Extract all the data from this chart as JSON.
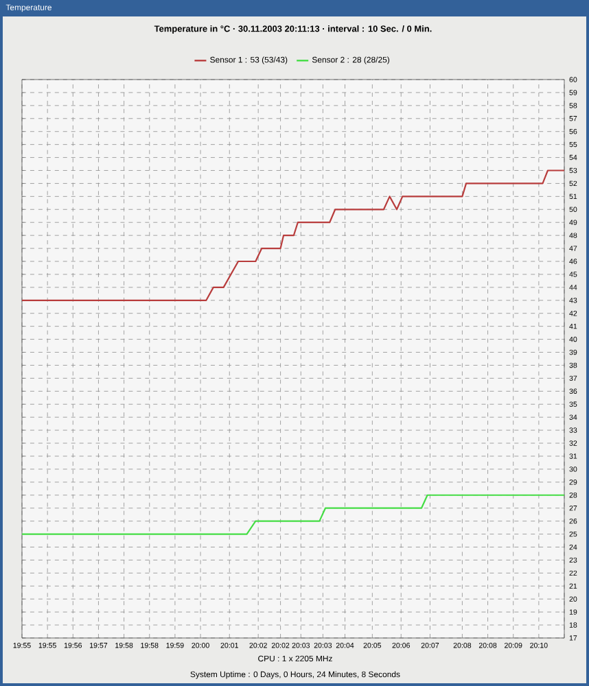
{
  "chart_data": {
    "type": "line",
    "title": "Temperature in °C · 30.11.2003 20:11:13 · interval : 10 Sec. / 0 Min.",
    "annotations": [
      "Temperature",
      "CPU : 1 x 2205 MHz",
      "System Uptime : 0 Days, 0 Hours, 24 Minutes, 8 Seconds"
    ],
    "series": [
      {
        "name": "Sensor 1 : 53 (53/43)",
        "color": "#b83c3c",
        "x": [
          19.91,
          20.0003,
          20.0038,
          20.0088,
          20.016,
          20.0245,
          20.0275,
          20.0367,
          20.0382,
          20.0432,
          20.0452,
          20.0608,
          20.0635,
          20.0873,
          20.0902,
          20.0937,
          20.0965,
          20.1258,
          20.1277,
          20.1652,
          20.1677,
          20.1758
        ],
        "values": [
          43,
          43,
          44,
          44,
          46,
          46,
          47,
          47,
          48,
          48,
          49,
          49,
          50,
          50,
          51,
          50,
          51,
          51,
          52,
          52,
          53,
          53
        ]
      },
      {
        "name": "Sensor 2 : 28 (28/25)",
        "color": "#44dd44",
        "x": [
          19.91,
          20.0202,
          20.0245,
          20.0558,
          20.0587,
          20.1058,
          20.1087,
          20.1758
        ],
        "values": [
          25,
          25,
          26,
          26,
          27,
          27,
          28,
          28
        ]
      }
    ],
    "xlim": [
      19.91,
      20.1758
    ],
    "xticks": [
      {
        "value": 19.91,
        "label": "19:55"
      },
      {
        "value": 19.9225,
        "label": "19:55"
      },
      {
        "value": 19.935,
        "label": "19:56"
      },
      {
        "value": 19.9475,
        "label": "19:57"
      },
      {
        "value": 19.96,
        "label": "19:58"
      },
      {
        "value": 19.9725,
        "label": "19:58"
      },
      {
        "value": 19.985,
        "label": "19:59"
      },
      {
        "value": 19.9975,
        "label": "20:00"
      },
      {
        "value": 20.0117,
        "label": "20:01"
      },
      {
        "value": 20.0258,
        "label": "20:02"
      },
      {
        "value": 20.0367,
        "label": "20:02"
      },
      {
        "value": 20.0467,
        "label": "20:03"
      },
      {
        "value": 20.0575,
        "label": "20:03"
      },
      {
        "value": 20.0683,
        "label": "20:04"
      },
      {
        "value": 20.0817,
        "label": "20:05"
      },
      {
        "value": 20.0958,
        "label": "20:06"
      },
      {
        "value": 20.11,
        "label": "20:07"
      },
      {
        "value": 20.1258,
        "label": "20:08"
      },
      {
        "value": 20.1383,
        "label": "20:08"
      },
      {
        "value": 20.1508,
        "label": "20:09"
      },
      {
        "value": 20.1633,
        "label": "20:10"
      },
      {
        "value": 20.1758,
        "label": null
      }
    ],
    "ylim": [
      17,
      60
    ],
    "yticks": [
      17,
      18,
      19,
      20,
      21,
      22,
      23,
      24,
      25,
      26,
      27,
      28,
      29,
      30,
      31,
      32,
      33,
      34,
      35,
      36,
      37,
      38,
      39,
      40,
      41,
      42,
      43,
      44,
      45,
      46,
      47,
      48,
      49,
      50,
      51,
      52,
      53,
      54,
      55,
      56,
      57,
      58,
      59,
      60
    ],
    "grid": true,
    "legend": "top",
    "line_style": "solid",
    "marker": "none"
  }
}
